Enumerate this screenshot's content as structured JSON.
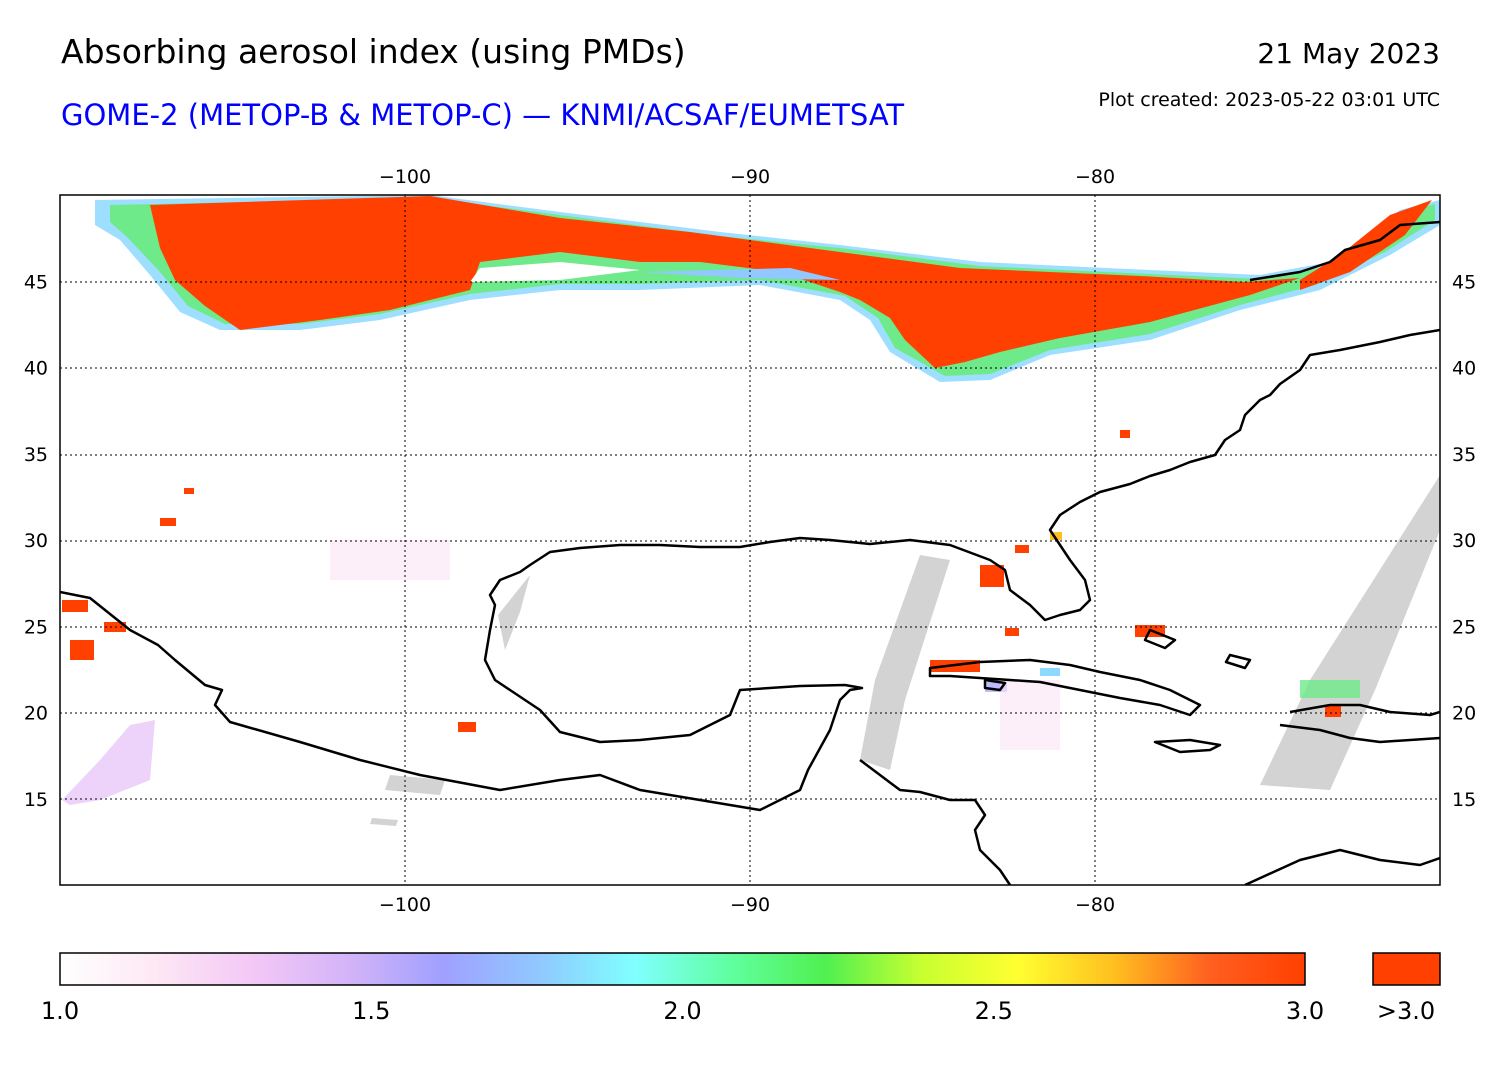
{
  "header": {
    "title": "Absorbing aerosol index (using PMDs)",
    "subtitle": "GOME-2 (METOP-B & METOP-C) — KNMI/ACSAF/EUMETSAT",
    "date": "21 May 2023",
    "plot_created": "Plot created: 2023-05-22 03:01 UTC"
  },
  "map": {
    "region": "Gulf of Mexico / Caribbean / eastern North America",
    "lon_range": [
      -110,
      -70
    ],
    "lat_range": [
      10,
      50
    ],
    "lon_ticks": [
      {
        "value": -100,
        "label": "−100"
      },
      {
        "value": -90,
        "label": "−90"
      },
      {
        "value": -80,
        "label": "−80"
      }
    ],
    "lat_ticks": [
      {
        "value": 45,
        "label": "45"
      },
      {
        "value": 40,
        "label": "40"
      },
      {
        "value": 35,
        "label": "35"
      },
      {
        "value": 30,
        "label": "30"
      },
      {
        "value": 25,
        "label": "25"
      },
      {
        "value": 20,
        "label": "20"
      },
      {
        "value": 15,
        "label": "15"
      }
    ],
    "grid": "dotted",
    "no_data_color": "#d3d3d3",
    "coastline_color": "#000000"
  },
  "colorbar": {
    "labels": [
      {
        "value": 1.0,
        "label": "1.0"
      },
      {
        "value": 1.5,
        "label": "1.5"
      },
      {
        "value": 2.0,
        "label": "2.0"
      },
      {
        "value": 2.5,
        "label": "2.5"
      },
      {
        "value": 3.0,
        "label": "3.0"
      }
    ],
    "overflow_label": ">3.0",
    "stops": [
      "#ffffff",
      "#fde8f4",
      "#f3c8f6",
      "#d4b4f8",
      "#a0a0ff",
      "#90c8ff",
      "#80ffff",
      "#60ffa0",
      "#50f050",
      "#c8ff30",
      "#ffff30",
      "#ffc020",
      "#ff6020",
      "#ff4000"
    ],
    "overflow_color": "#ff4000"
  }
}
